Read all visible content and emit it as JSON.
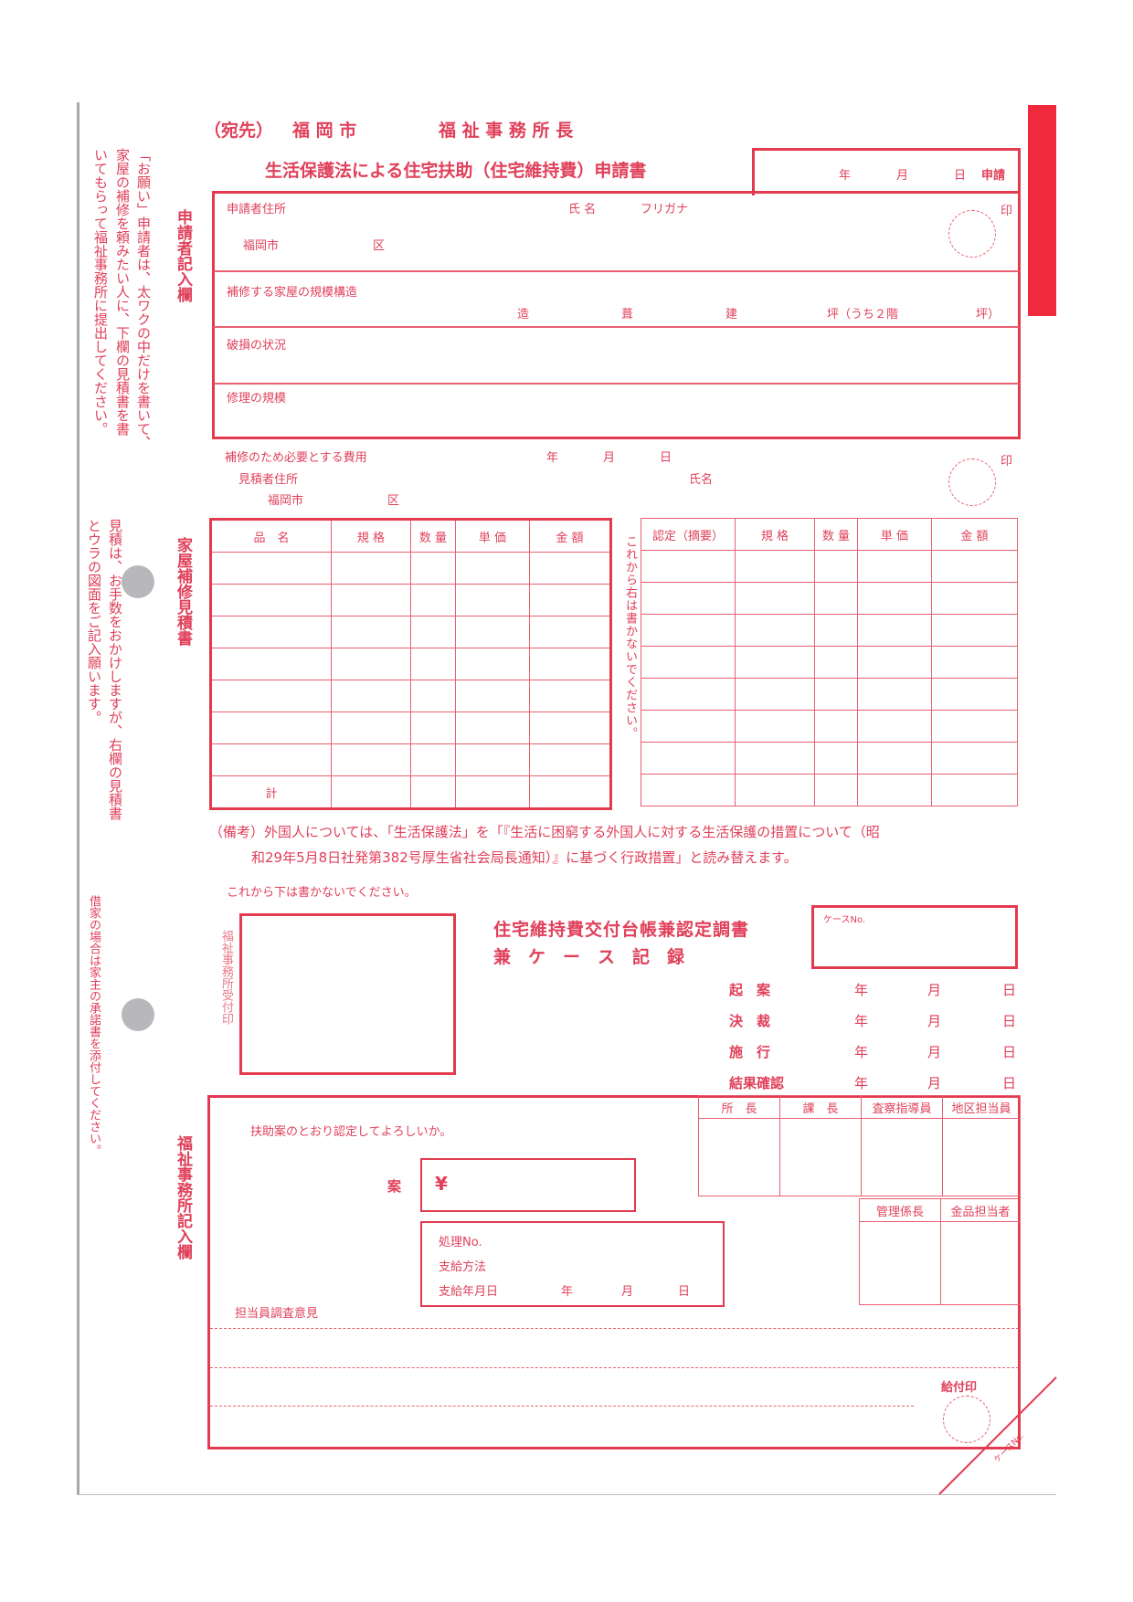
{
  "addressee": {
    "prefix": "（宛先）",
    "city": "福 岡 市",
    "office": "福 祉 事 務 所 長"
  },
  "title": "生活保護法による住宅扶助（住宅維持費）申請書",
  "date_box": {
    "year": "年",
    "month": "月",
    "day": "日",
    "suffix": "申請"
  },
  "side_labels": {
    "applicant": "申請者記入欄",
    "estimate": "家屋補修見積書",
    "office": "福祉事務所記入欄"
  },
  "left_notes": {
    "request": [
      "「お願い」申請者は、太ワクの中だけを書いて、",
      "家屋の補修を頼みたい人に、下欄の見積書を書",
      "いてもらって福祉事務所に提出してください。"
    ],
    "estimate": [
      "見積は、お手数をおかけしますが、右欄の見積書",
      "とウラの図面をご記入願います。"
    ],
    "rental": "借家の場合は家主の承諾書を添付してください。"
  },
  "applicant": {
    "address_label": "申請者住所",
    "name_label": "氏 名",
    "furigana": "フリガナ",
    "city": "福岡市",
    "ward": "区",
    "seal": "印",
    "structure_label": "補修する家屋の規模構造",
    "zo": "造",
    "fuki": "葺",
    "date": "建",
    "tsubo": "坪（うち２階",
    "tsubo_end": "坪）",
    "damage_label": "破損の状況",
    "repair_label": "修理の規模"
  },
  "estimate": {
    "cost_label": "補修のため必要とする費用",
    "year": "年",
    "month": "月",
    "day": "日",
    "estimator_address": "見積者住所",
    "name_label": "氏名",
    "city": "福岡市",
    "ward": "区",
    "seal": "印"
  },
  "left_table": {
    "headers": [
      "品　名",
      "規 格",
      "数 量",
      "単 価",
      "金 額"
    ],
    "total_label": "計"
  },
  "right_table": {
    "headers": [
      "認定（摘要）",
      "規 格",
      "数 量",
      "単 価",
      "金 額"
    ]
  },
  "no_write_right": "これから右は書かないでください。",
  "remark": [
    "（備考）外国人については、「生活保護法」を「『生活に困窮する外国人に対する生活保護の措置について（昭",
    "和29年5月8日社発第382号厚生省社会局長通知）』に基づく行政措置」と読み替えます。"
  ],
  "no_write_below": "これから下は書かないでください。",
  "receipt_stamp": "福祉事務所受付印",
  "ledger_title": [
    "住宅維持費交付台帳兼認定調書",
    "兼　ケ　ー　ス　記　録"
  ],
  "case_no": "ケースNo.",
  "process_dates": [
    {
      "label": "起　案"
    },
    {
      "label": "決　裁"
    },
    {
      "label": "施　行"
    },
    {
      "label": "結果確認"
    }
  ],
  "ymd": {
    "y": "年",
    "m": "月",
    "d": "日"
  },
  "approval": {
    "question": "扶助案のとおり認定してよろしいか。",
    "plan_label": "案",
    "yen": "¥",
    "roles": [
      "所　長",
      "課　長",
      "査察指導員",
      "地区担当員"
    ],
    "roles2": [
      "管理係長",
      "金品担当者"
    ],
    "processing_no": "処理No.",
    "payment_method": "支給方法",
    "payment_date": "支給年月日",
    "year": "年",
    "month": "月",
    "day": "日",
    "opinion": "担当員調査意見",
    "payment_seal": "給付印",
    "corner_case_no": "ケースNo."
  },
  "colors": {
    "form_red": "#e33a50",
    "text_pink": "#e0405a"
  }
}
